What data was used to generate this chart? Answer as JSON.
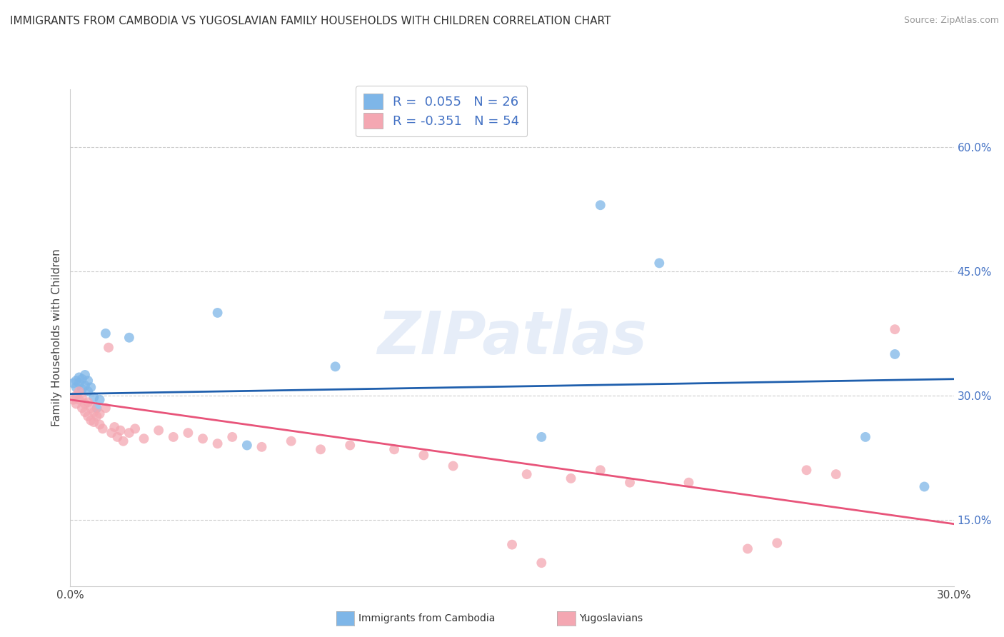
{
  "title": "IMMIGRANTS FROM CAMBODIA VS YUGOSLAVIAN FAMILY HOUSEHOLDS WITH CHILDREN CORRELATION CHART",
  "source": "Source: ZipAtlas.com",
  "ylabel": "Family Households with Children",
  "legend_label1": "Immigrants from Cambodia",
  "legend_label2": "Yugoslavians",
  "R1": 0.055,
  "N1": 26,
  "R2": -0.351,
  "N2": 54,
  "xlim": [
    0.0,
    0.3
  ],
  "ylim": [
    0.07,
    0.67
  ],
  "ytick_labels_right": [
    "15.0%",
    "30.0%",
    "45.0%",
    "60.0%"
  ],
  "yticks_right": [
    0.15,
    0.3,
    0.45,
    0.6
  ],
  "color_cambodia": "#7EB6E8",
  "color_yugoslavia": "#F4A7B2",
  "line_color_cambodia": "#1F5FAD",
  "line_color_yugoslavia": "#E8547A",
  "watermark_text": "ZIPatlas",
  "scatter_cambodia": [
    [
      0.001,
      0.315
    ],
    [
      0.002,
      0.318
    ],
    [
      0.002,
      0.31
    ],
    [
      0.003,
      0.322
    ],
    [
      0.003,
      0.315
    ],
    [
      0.004,
      0.32
    ],
    [
      0.004,
      0.308
    ],
    [
      0.005,
      0.325
    ],
    [
      0.005,
      0.312
    ],
    [
      0.006,
      0.318
    ],
    [
      0.006,
      0.305
    ],
    [
      0.007,
      0.31
    ],
    [
      0.008,
      0.298
    ],
    [
      0.009,
      0.285
    ],
    [
      0.01,
      0.295
    ],
    [
      0.012,
      0.375
    ],
    [
      0.02,
      0.37
    ],
    [
      0.05,
      0.4
    ],
    [
      0.06,
      0.24
    ],
    [
      0.16,
      0.25
    ],
    [
      0.2,
      0.46
    ],
    [
      0.27,
      0.25
    ],
    [
      0.28,
      0.35
    ],
    [
      0.29,
      0.19
    ],
    [
      0.09,
      0.335
    ],
    [
      0.18,
      0.53
    ]
  ],
  "scatter_yugoslavia": [
    [
      0.001,
      0.295
    ],
    [
      0.002,
      0.3
    ],
    [
      0.002,
      0.29
    ],
    [
      0.003,
      0.305
    ],
    [
      0.003,
      0.295
    ],
    [
      0.004,
      0.298
    ],
    [
      0.004,
      0.285
    ],
    [
      0.005,
      0.29
    ],
    [
      0.005,
      0.28
    ],
    [
      0.006,
      0.292
    ],
    [
      0.006,
      0.275
    ],
    [
      0.007,
      0.285
    ],
    [
      0.007,
      0.27
    ],
    [
      0.008,
      0.28
    ],
    [
      0.008,
      0.268
    ],
    [
      0.009,
      0.275
    ],
    [
      0.01,
      0.265
    ],
    [
      0.01,
      0.278
    ],
    [
      0.011,
      0.26
    ],
    [
      0.012,
      0.285
    ],
    [
      0.013,
      0.358
    ],
    [
      0.014,
      0.255
    ],
    [
      0.015,
      0.262
    ],
    [
      0.016,
      0.25
    ],
    [
      0.017,
      0.258
    ],
    [
      0.018,
      0.245
    ],
    [
      0.02,
      0.255
    ],
    [
      0.022,
      0.26
    ],
    [
      0.025,
      0.248
    ],
    [
      0.03,
      0.258
    ],
    [
      0.035,
      0.25
    ],
    [
      0.04,
      0.255
    ],
    [
      0.045,
      0.248
    ],
    [
      0.05,
      0.242
    ],
    [
      0.055,
      0.25
    ],
    [
      0.065,
      0.238
    ],
    [
      0.075,
      0.245
    ],
    [
      0.085,
      0.235
    ],
    [
      0.095,
      0.24
    ],
    [
      0.11,
      0.235
    ],
    [
      0.12,
      0.228
    ],
    [
      0.13,
      0.215
    ],
    [
      0.15,
      0.12
    ],
    [
      0.155,
      0.205
    ],
    [
      0.16,
      0.098
    ],
    [
      0.17,
      0.2
    ],
    [
      0.18,
      0.21
    ],
    [
      0.19,
      0.195
    ],
    [
      0.21,
      0.195
    ],
    [
      0.23,
      0.115
    ],
    [
      0.24,
      0.122
    ],
    [
      0.25,
      0.21
    ],
    [
      0.26,
      0.205
    ],
    [
      0.28,
      0.38
    ]
  ],
  "line_cambodia_x0": 0.0,
  "line_cambodia_y0": 0.302,
  "line_cambodia_x1": 0.3,
  "line_cambodia_y1": 0.32,
  "line_yugoslavia_x0": 0.0,
  "line_yugoslavia_y0": 0.295,
  "line_yugoslavia_x1": 0.3,
  "line_yugoslavia_y1": 0.145
}
